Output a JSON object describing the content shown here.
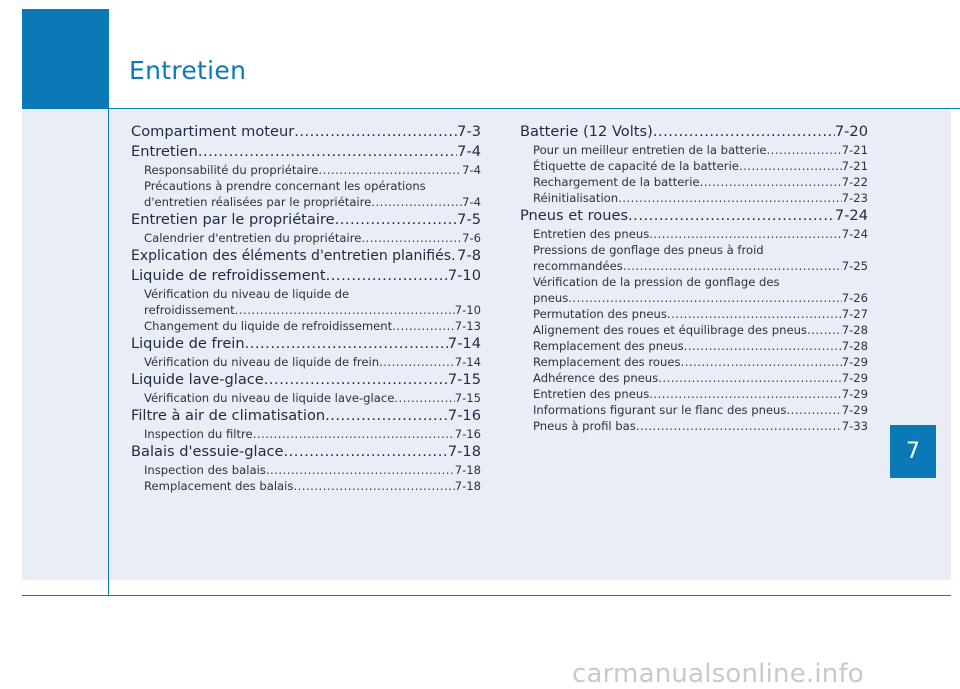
{
  "page": {
    "title": "Entretien",
    "chapter": "7",
    "watermark": "carmanualsonline.info"
  },
  "toc_left": [
    {
      "label": "Compartiment moteur",
      "page": "7-3"
    },
    {
      "label": "Entretien",
      "page": "7-4"
    },
    {
      "label": "Responsabilité du propriétaire",
      "page": "7-4"
    },
    {
      "label": "Précautions à prendre concernant les opérations",
      "label2": "d'entretien réalisées par le propriétaire",
      "page": "7-4"
    },
    {
      "label": "Entretien par le propriétaire",
      "page": "7-5"
    },
    {
      "label": "Calendrier d'entretien du propriétaire",
      "page": "7-6"
    },
    {
      "label": "Explication des éléments d'entretien planifiés",
      "page": "7-8"
    },
    {
      "label": "Liquide de refroidissement",
      "page": "7-10"
    },
    {
      "label": "Vérification du niveau de liquide de",
      "label2": "refroidissement",
      "page": "7-10"
    },
    {
      "label": "Changement du liquide de refroidissement",
      "page": "7-13"
    },
    {
      "label": "Liquide de frein",
      "page": "7-14"
    },
    {
      "label": "Vérification du niveau de liquide de frein",
      "page": "7-14"
    },
    {
      "label": "Liquide lave-glace",
      "page": "7-15"
    },
    {
      "label": "Vérification du niveau de liquide lave-glace",
      "page": "7-15"
    },
    {
      "label": "Filtre à air de climatisation",
      "page": "7-16"
    },
    {
      "label": "Inspection du filtre",
      "page": "7-16"
    },
    {
      "label": "Balais d'essuie-glace",
      "page": "7-18"
    },
    {
      "label": "Inspection des balais",
      "page": "7-18"
    },
    {
      "label": "Remplacement des balais",
      "page": "7-18"
    }
  ],
  "toc_right": [
    {
      "label": "Batterie (12 Volts)",
      "page": "7-20"
    },
    {
      "label": "Pour un meilleur entretien de la batterie",
      "page": "7-21"
    },
    {
      "label": "Étiquette de capacité de la batterie",
      "page": "7-21"
    },
    {
      "label": "Rechargement de la batterie",
      "page": "7-22"
    },
    {
      "label": "Réinitialisation",
      "page": "7-23"
    },
    {
      "label": "Pneus et roues",
      "page": "7-24"
    },
    {
      "label": "Entretien des pneus",
      "page": "7-24"
    },
    {
      "label": "Pressions de gonflage des pneus à froid",
      "label2": "recommandées",
      "page": "7-25"
    },
    {
      "label": "Vérification de la pression de gonflage des",
      "label2": "pneus",
      "page": "7-26"
    },
    {
      "label": "Permutation des pneus",
      "page": "7-27"
    },
    {
      "label": "Alignement des roues et équilibrage des pneus",
      "page": "7-28"
    },
    {
      "label": "Remplacement des pneus",
      "page": "7-28"
    },
    {
      "label": "Remplacement des roues",
      "page": "7-29"
    },
    {
      "label": "Adhérence des pneus",
      "page": "7-29"
    },
    {
      "label": "Entretien des pneus",
      "page": "7-29"
    },
    {
      "label": "Informations figurant sur le flanc des pneus",
      "page": "7-29"
    },
    {
      "label": "Pneus à profil bas",
      "page": "7-33"
    }
  ]
}
